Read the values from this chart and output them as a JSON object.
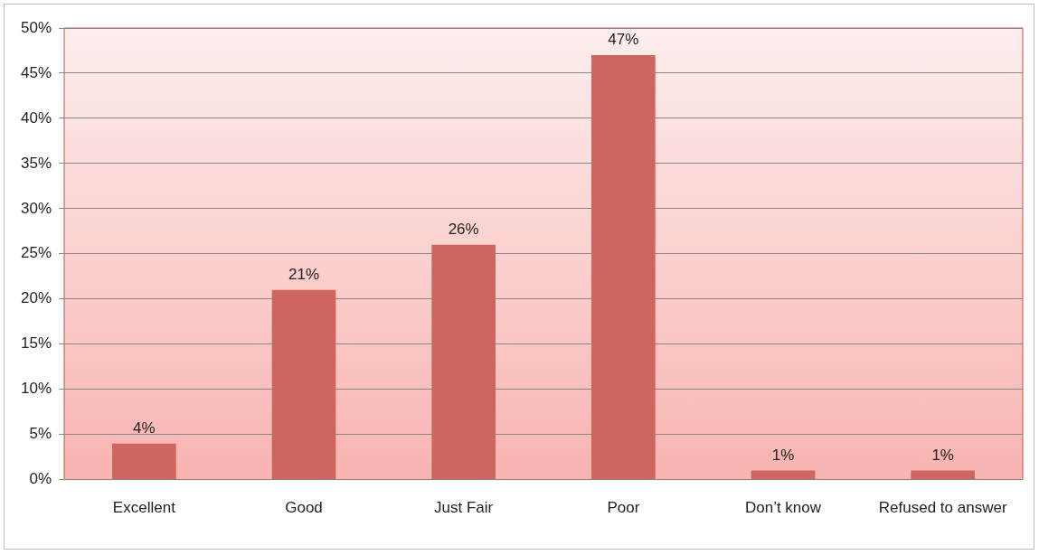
{
  "chart_data": {
    "type": "bar",
    "categories": [
      "Excellent",
      "Good",
      "Just Fair",
      "Poor",
      "Don’t know",
      "Refused to answer"
    ],
    "values": [
      4,
      21,
      26,
      47,
      1,
      1
    ],
    "value_labels": [
      "4%",
      "21%",
      "26%",
      "47%",
      "1%",
      "1%"
    ],
    "color": "#cd6660",
    "ylim": [
      0,
      50
    ],
    "yticks": [
      {
        "value": 0,
        "label": "0%"
      },
      {
        "value": 5,
        "label": "5%"
      },
      {
        "value": 10,
        "label": "10%"
      },
      {
        "value": 15,
        "label": "15%"
      },
      {
        "value": 20,
        "label": "20%"
      },
      {
        "value": 25,
        "label": "25%"
      },
      {
        "value": 30,
        "label": "30%"
      },
      {
        "value": 35,
        "label": "35%"
      },
      {
        "value": 40,
        "label": "40%"
      },
      {
        "value": 45,
        "label": "45%"
      },
      {
        "value": 50,
        "label": "50%"
      }
    ],
    "grid": "y",
    "legend": false
  }
}
